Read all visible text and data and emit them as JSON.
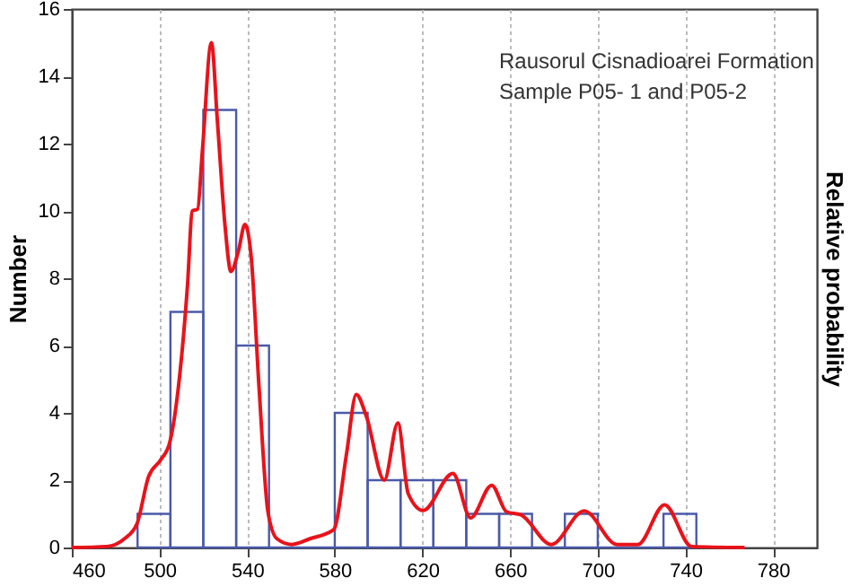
{
  "chart_data": {
    "type": "histogram",
    "ylabel": "Number",
    "y2label": "Relative probability",
    "annotations": [
      "Rausorul Cisnadioarei Formation",
      "Sample P05- 1 and P05-2"
    ],
    "xlim": [
      460,
      800
    ],
    "xticks": [
      460,
      500,
      540,
      580,
      620,
      660,
      700,
      740,
      780
    ],
    "ylim": [
      0,
      16
    ],
    "yticks": [
      0,
      2,
      4,
      6,
      8,
      10,
      12,
      14,
      16
    ],
    "grid": "x",
    "series": [
      {
        "color": "#4a5aa8",
        "bins": [
          490,
          505,
          520,
          535,
          550,
          565,
          580,
          595,
          610,
          625,
          640,
          655,
          670,
          685,
          700,
          715,
          730,
          745
        ],
        "values": [
          1,
          7,
          13,
          6,
          0,
          0,
          4,
          2,
          2,
          2,
          1,
          1,
          0,
          1,
          0,
          0,
          1
        ]
      },
      {
        "type": "line",
        "color": "#e8131b",
        "x": [
          460,
          476,
          484,
          489.7,
          495,
          500.5,
          504.6,
          508.7,
          512.8,
          515,
          517.4,
          519.6,
          523.7,
          526.4,
          530,
          532.6,
          536,
          539,
          541.9,
          545.4,
          549.5,
          553.6,
          560.4,
          568.6,
          579.5,
          585.4,
          589.8,
          594.4,
          602.6,
          608.8,
          613.5,
          620.3,
          633.9,
          642,
          651.6,
          658.4,
          665,
          678.8,
          693.8,
          708.8,
          718.3,
          730.5,
          742.8,
          767
        ],
        "values": [
          0,
          0.03,
          0.26,
          0.7,
          2.1,
          2.6,
          3.1,
          4.8,
          7.8,
          10.0,
          10.05,
          11.8,
          15.0,
          12.7,
          9.5,
          8.2,
          8.8,
          9.6,
          8.6,
          4.8,
          1.06,
          0.26,
          0.09,
          0.26,
          0.53,
          2.8,
          4.55,
          3.9,
          2.0,
          3.7,
          1.6,
          1.1,
          2.2,
          0.88,
          1.85,
          1.06,
          0.97,
          0.09,
          1.09,
          0.09,
          0.09,
          1.27,
          0.03,
          0
        ]
      }
    ]
  }
}
